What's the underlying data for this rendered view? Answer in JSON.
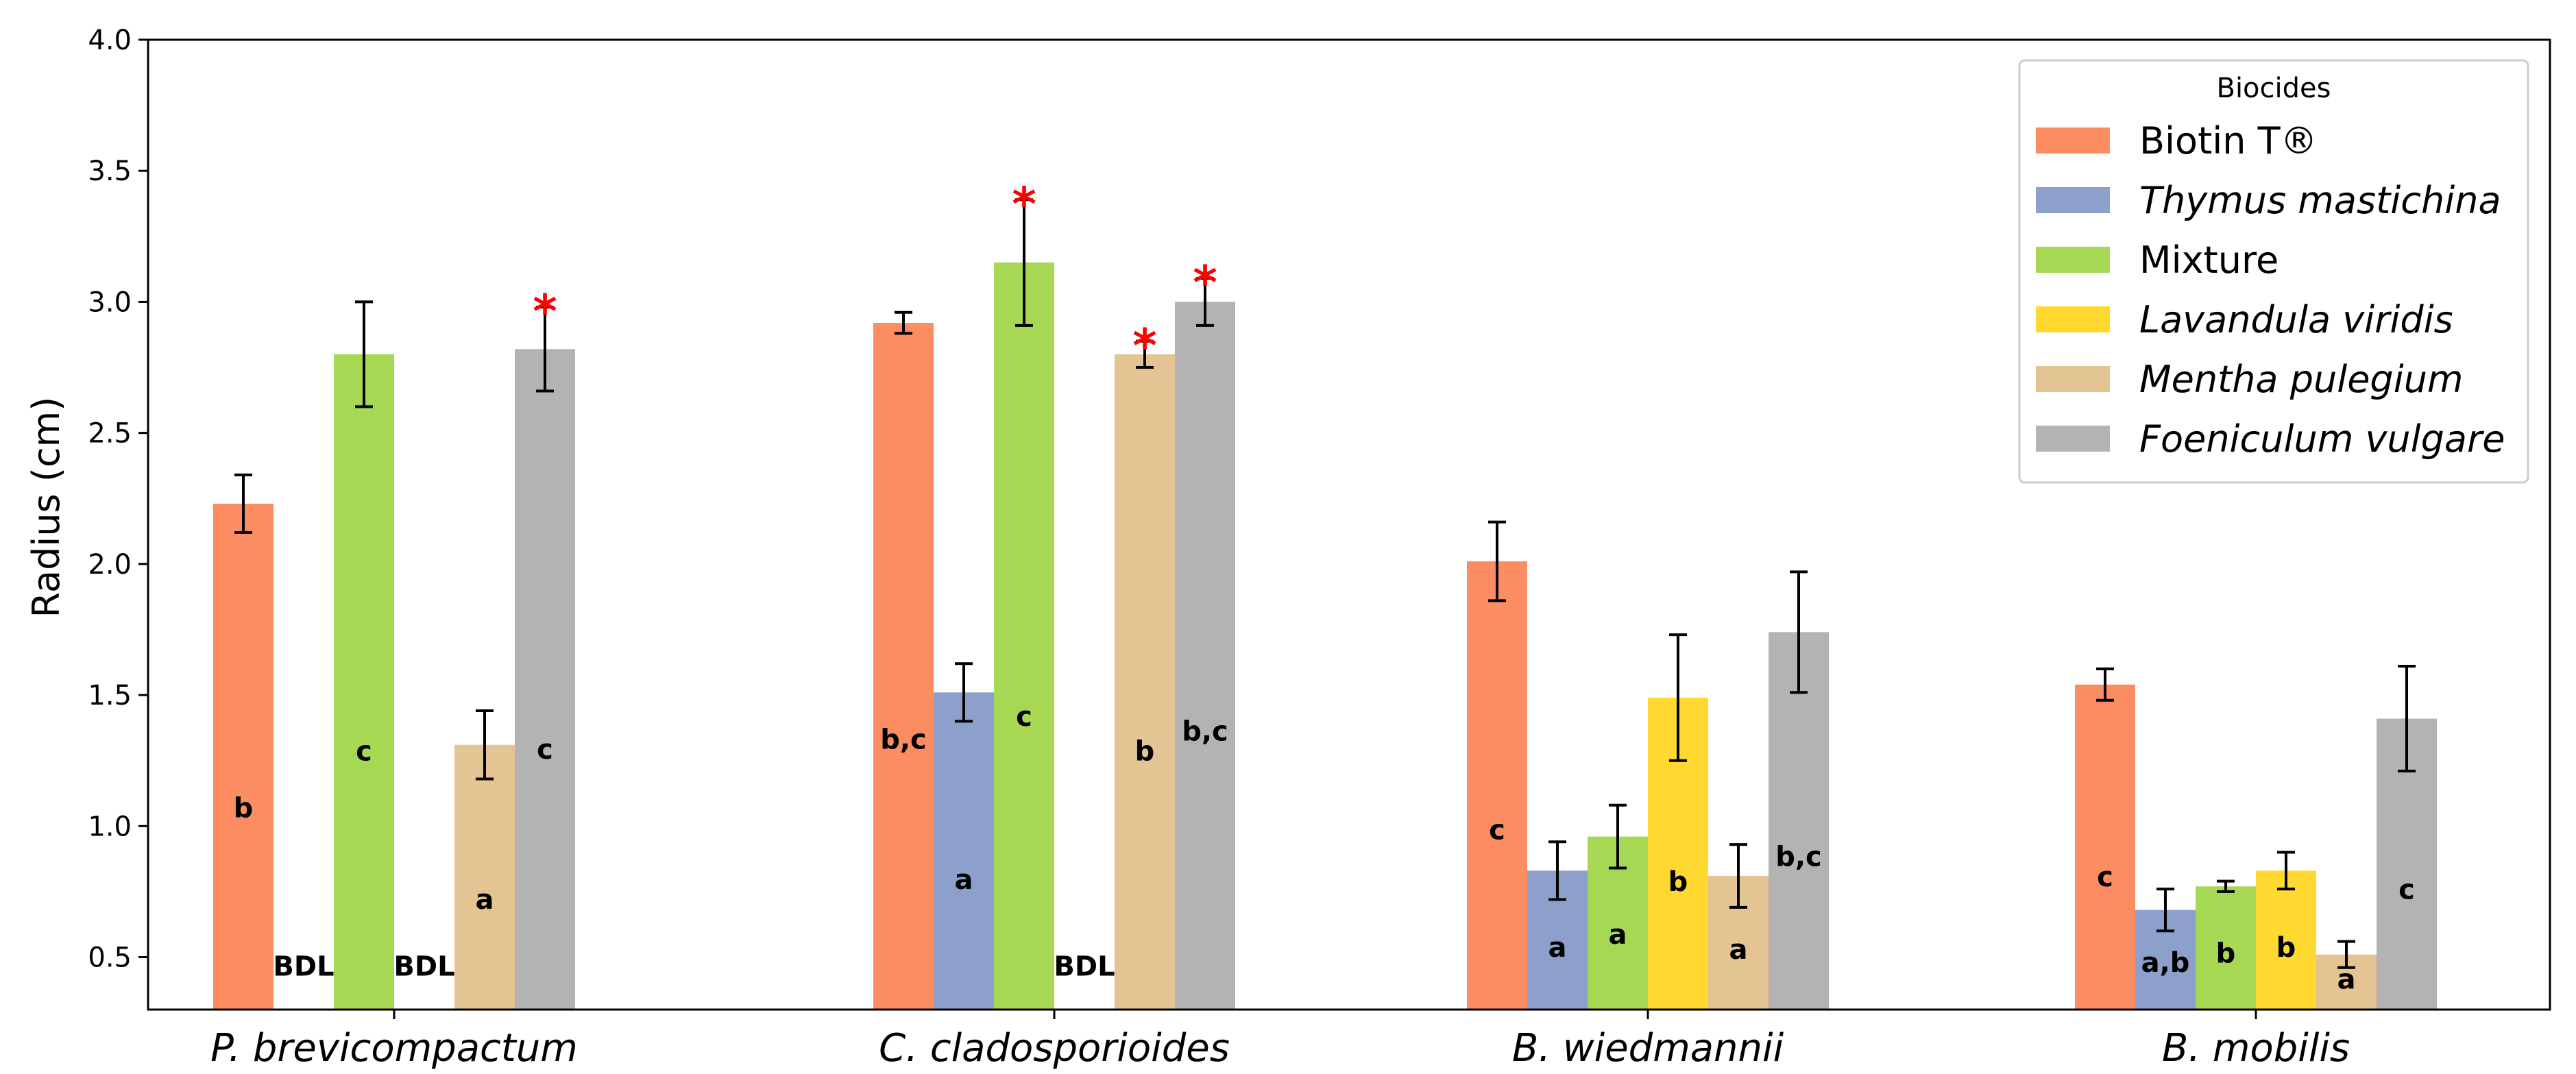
{
  "chart_data": {
    "type": "bar",
    "title": "",
    "xlabel": "",
    "ylabel": "Radius (cm)",
    "ylim": [
      0.3,
      4.0
    ],
    "yticks": [
      "0.5",
      "1.0",
      "1.5",
      "2.0",
      "2.5",
      "3.0",
      "3.5",
      "4.0"
    ],
    "grid": false,
    "categories": [
      "P. brevicompactum",
      "C. cladosporioides",
      "B. wiedmannii",
      "B. mobilis"
    ],
    "legend": {
      "title": "Biocides",
      "placement": "top-right",
      "entries": [
        "Biotin T®",
        "Thymus mastichina",
        "Mixture",
        "Lavandula viridis",
        "Mentha pulegium",
        "Foeniculum vulgare"
      ]
    },
    "series": [
      {
        "name": "Biotin T®",
        "italic": false,
        "color": "#fc8d62",
        "values": [
          2.23,
          2.92,
          2.01,
          1.54
        ],
        "errors": [
          0.11,
          0.04,
          0.15,
          0.06
        ],
        "labels": [
          "b",
          "b,c",
          "c",
          "c"
        ],
        "significant": [
          false,
          false,
          false,
          false
        ]
      },
      {
        "name": "Thymus mastichina",
        "italic": true,
        "color": "#8da0cb",
        "values": [
          null,
          1.51,
          0.83,
          0.68
        ],
        "errors": [
          null,
          0.11,
          0.11,
          0.08
        ],
        "labels": [
          "BDL",
          "a",
          "a",
          "a,b"
        ],
        "significant": [
          false,
          false,
          false,
          false
        ]
      },
      {
        "name": "Mixture",
        "italic": false,
        "color": "#a6d854",
        "values": [
          2.8,
          3.15,
          0.96,
          0.77
        ],
        "errors": [
          0.2,
          0.24,
          0.12,
          0.02
        ],
        "labels": [
          "c",
          "c",
          "a",
          "b"
        ],
        "significant": [
          false,
          true,
          false,
          false
        ]
      },
      {
        "name": "Lavandula viridis",
        "italic": true,
        "color": "#ffd92f",
        "values": [
          null,
          null,
          1.49,
          0.83
        ],
        "errors": [
          null,
          null,
          0.24,
          0.07
        ],
        "labels": [
          "BDL",
          "BDL",
          "b",
          "b"
        ],
        "significant": [
          false,
          false,
          false,
          false
        ]
      },
      {
        "name": "Mentha pulegium",
        "italic": true,
        "color": "#e5c494",
        "values": [
          1.31,
          2.8,
          0.81,
          0.51
        ],
        "errors": [
          0.13,
          0.05,
          0.12,
          0.05
        ],
        "labels": [
          "a",
          "b",
          "a",
          "a"
        ],
        "significant": [
          false,
          true,
          false,
          false
        ]
      },
      {
        "name": "Foeniculum vulgare",
        "italic": true,
        "color": "#b3b3b3",
        "values": [
          2.82,
          3.0,
          1.74,
          1.41
        ],
        "errors": [
          0.16,
          0.09,
          0.23,
          0.2
        ],
        "labels": [
          "c",
          "b,c",
          "b,c",
          "c"
        ],
        "significant": [
          true,
          true,
          false,
          false
        ]
      }
    ],
    "significance_marker": "*"
  }
}
